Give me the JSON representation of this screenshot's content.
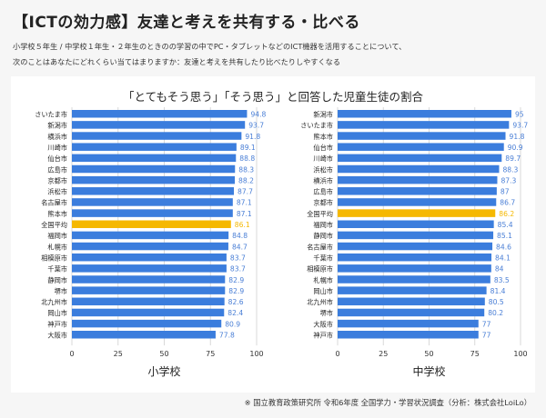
{
  "title": "【ICTの効力感】友達と考えを共有する・比べる",
  "description_line1": "小学校５年生 / 中学校１年生・２年生のときのの学習の中でPC・タブレットなどのICT機器を活用することについて、",
  "description_line2": "次のことはあなたにどれくらい当てはまりますか：友達と考えを共有したり比べたりしやすくなる",
  "footnote": "※ 国立教育政策研究所 令和6年度 全国学力・学習状況調査（分析：株式会社LoiLo）",
  "colors": {
    "bar": "#3b7ddd",
    "highlight": "#f5b800",
    "value_text": "#4a7fd6",
    "grid": "#d9d9d9"
  },
  "chart_data": [
    {
      "type": "bar",
      "orientation": "horizontal",
      "title": "「とてもそう思う」「そう思う」と回答した児童生徒の割合",
      "xlabel": "小学校",
      "xlim": [
        0,
        100
      ],
      "xticks": [
        0,
        25,
        50,
        75,
        100
      ],
      "highlight_category": "全国平均",
      "categories": [
        "さいたま市",
        "新潟市",
        "横浜市",
        "川崎市",
        "仙台市",
        "広島市",
        "京都市",
        "浜松市",
        "名古屋市",
        "熊本市",
        "全国平均",
        "福岡市",
        "札幌市",
        "相模原市",
        "千葉市",
        "静岡市",
        "堺市",
        "北九州市",
        "岡山市",
        "神戸市",
        "大阪市"
      ],
      "values": [
        94.8,
        93.7,
        91.8,
        89.1,
        88.8,
        88.3,
        88.2,
        87.7,
        87.1,
        87.1,
        86.1,
        84.8,
        84.7,
        83.7,
        83.7,
        82.9,
        82.9,
        82.6,
        82.4,
        80.9,
        77.8
      ]
    },
    {
      "type": "bar",
      "orientation": "horizontal",
      "title": "「とてもそう思う」「そう思う」と回答した児童生徒の割合",
      "xlabel": "中学校",
      "xlim": [
        0,
        100
      ],
      "xticks": [
        0,
        25,
        50,
        75,
        100
      ],
      "highlight_category": "全国平均",
      "categories": [
        "新潟市",
        "さいたま市",
        "熊本市",
        "仙台市",
        "川崎市",
        "浜松市",
        "横浜市",
        "広島市",
        "京都市",
        "全国平均",
        "福岡市",
        "静岡市",
        "名古屋市",
        "千葉市",
        "相模原市",
        "札幌市",
        "岡山市",
        "北九州市",
        "堺市",
        "大阪市",
        "神戸市"
      ],
      "values": [
        95,
        93.7,
        91.8,
        90.9,
        89.7,
        88.3,
        87.3,
        87,
        86.7,
        86.2,
        85.4,
        85.1,
        84.6,
        84.1,
        84,
        83.5,
        81.4,
        80.5,
        80.2,
        77,
        77
      ]
    }
  ]
}
